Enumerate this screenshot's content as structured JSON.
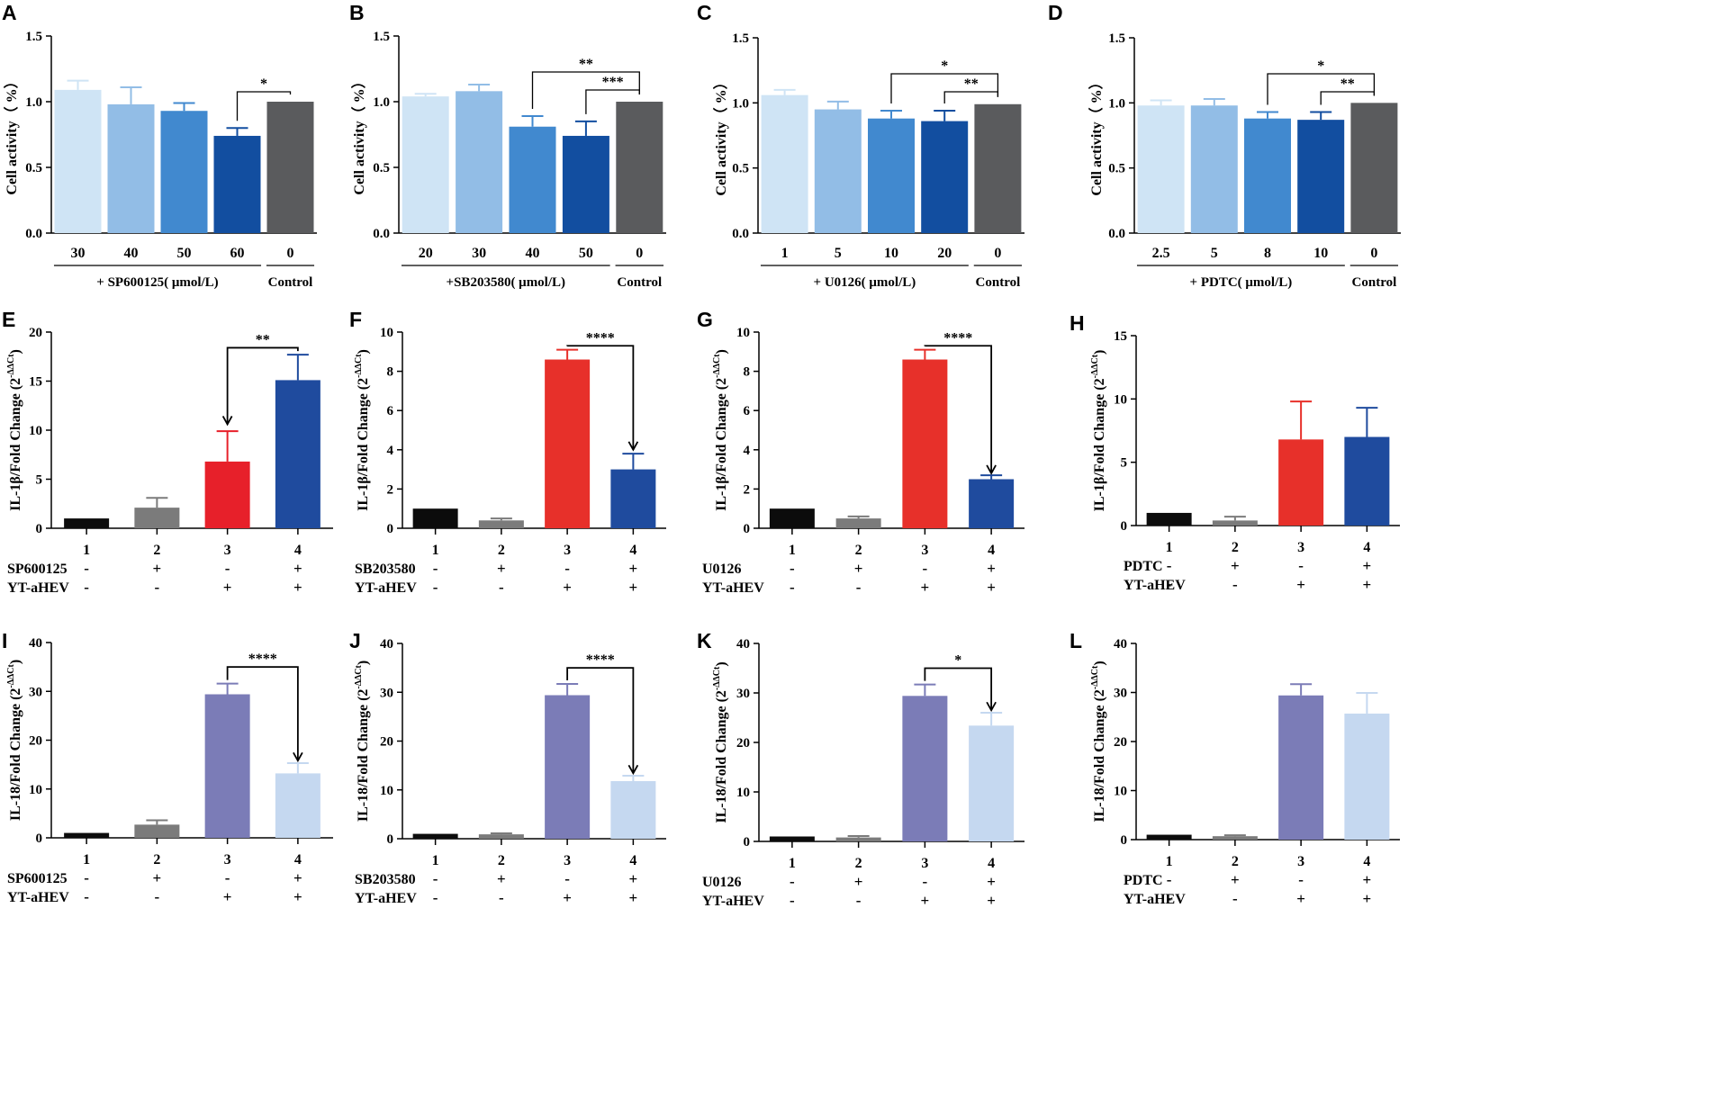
{
  "chart_data": [
    {
      "panel": "A",
      "type": "bar",
      "ylabel": "Cell activity（ %）",
      "ylim": [
        0,
        1.5
      ],
      "yticks": [
        "0.0",
        "0.5",
        "1.0",
        "1.5"
      ],
      "ytick_values": [
        0,
        0.5,
        1.0,
        1.5
      ],
      "categories": [
        "30",
        "40",
        "50",
        "60",
        "0"
      ],
      "values": [
        1.09,
        0.98,
        0.93,
        0.74,
        1.0
      ],
      "errors": [
        0.07,
        0.13,
        0.06,
        0.06,
        0.0
      ],
      "colors": [
        "#cfe4f5",
        "#92bde6",
        "#4189cf",
        "#124ea0",
        "#5a5b5d"
      ],
      "groups": [
        {
          "label": "+ SP600125( μmol/L)",
          "from": 0,
          "to": 3
        },
        {
          "label": "Control",
          "from": 4,
          "to": 4
        }
      ],
      "sig": [
        {
          "from": 3,
          "to": 4,
          "label": "*",
          "level": 0
        }
      ]
    },
    {
      "panel": "B",
      "type": "bar",
      "ylabel": "Cell activity（ %）",
      "ylim": [
        0,
        1.5
      ],
      "yticks": [
        "0.0",
        "0.5",
        "1.0",
        "1.5"
      ],
      "ytick_values": [
        0,
        0.5,
        1.0,
        1.5
      ],
      "categories": [
        "20",
        "30",
        "40",
        "50",
        "0"
      ],
      "values": [
        1.04,
        1.08,
        0.81,
        0.74,
        1.0
      ],
      "errors": [
        0.02,
        0.05,
        0.08,
        0.11,
        0.0
      ],
      "colors": [
        "#cfe4f5",
        "#92bde6",
        "#4189cf",
        "#124ea0",
        "#5a5b5d"
      ],
      "groups": [
        {
          "label": "+SB203580( μmol/L)",
          "from": 0,
          "to": 3
        },
        {
          "label": "Control",
          "from": 4,
          "to": 4
        }
      ],
      "sig": [
        {
          "from": 2,
          "to": 4,
          "label": "**",
          "level": 1
        },
        {
          "from": 3,
          "to": 4,
          "label": "***",
          "level": 0
        }
      ]
    },
    {
      "panel": "C",
      "type": "bar",
      "ylabel": "Cell activity（ %）",
      "ylim": [
        0,
        1.5
      ],
      "yticks": [
        "0.0",
        "0.5",
        "1.0",
        "1.5"
      ],
      "ytick_values": [
        0,
        0.5,
        1.0,
        1.5
      ],
      "categories": [
        "1",
        "5",
        "10",
        "20",
        "0"
      ],
      "values": [
        1.06,
        0.95,
        0.88,
        0.86,
        0.99
      ],
      "errors": [
        0.04,
        0.06,
        0.06,
        0.08,
        0.0
      ],
      "colors": [
        "#cfe4f5",
        "#92bde6",
        "#4189cf",
        "#124ea0",
        "#5a5b5d"
      ],
      "groups": [
        {
          "label": "+ U0126( μmol/L)",
          "from": 0,
          "to": 3
        },
        {
          "label": "Control",
          "from": 4,
          "to": 4
        }
      ],
      "sig": [
        {
          "from": 2,
          "to": 4,
          "label": "*",
          "level": 1
        },
        {
          "from": 3,
          "to": 4,
          "label": "**",
          "level": 0
        }
      ]
    },
    {
      "panel": "D",
      "type": "bar",
      "ylabel": "Cell activity（ %）",
      "ylim": [
        0,
        1.5
      ],
      "yticks": [
        "0.0",
        "0.5",
        "1.0",
        "1.5"
      ],
      "ytick_values": [
        0,
        0.5,
        1.0,
        1.5
      ],
      "categories": [
        "2.5",
        "5",
        "8",
        "10",
        "0"
      ],
      "values": [
        0.98,
        0.98,
        0.88,
        0.87,
        1.0
      ],
      "errors": [
        0.04,
        0.05,
        0.05,
        0.06,
        0.0
      ],
      "colors": [
        "#cfe4f5",
        "#92bde6",
        "#4189cf",
        "#124ea0",
        "#5a5b5d"
      ],
      "groups": [
        {
          "label": "+ PDTC( μmol/L)",
          "from": 0,
          "to": 3
        },
        {
          "label": "Control",
          "from": 4,
          "to": 4
        }
      ],
      "sig": [
        {
          "from": 2,
          "to": 4,
          "label": "*",
          "level": 1
        },
        {
          "from": 3,
          "to": 4,
          "label": "**",
          "level": 0
        }
      ]
    },
    {
      "panel": "E",
      "type": "bar",
      "ylabel": "IL-1β/Fold Change (2",
      "ylabel_sup": "-ΔΔCt",
      "ylabel_close": ")",
      "ylim": [
        0,
        20
      ],
      "yticks": [
        "0",
        "5",
        "10",
        "15",
        "20"
      ],
      "ytick_values": [
        0,
        5,
        10,
        15,
        20
      ],
      "categories": [
        "1",
        "2",
        "3",
        "4"
      ],
      "values": [
        1.0,
        2.1,
        6.8,
        15.1
      ],
      "errors": [
        0.0,
        1.0,
        3.1,
        2.6
      ],
      "colors": [
        "#0c0c0c",
        "#7b7b7b",
        "#e7202a",
        "#1f4b9e"
      ],
      "treatments": [
        {
          "label": "SP600125",
          "signs": [
            "-",
            "+",
            "-",
            "+"
          ]
        },
        {
          "label": "YT-aHEV",
          "signs": [
            "-",
            "-",
            "+",
            "+"
          ]
        }
      ],
      "sig": [
        {
          "from": 2,
          "to": 3,
          "label": "**",
          "y": 18.4,
          "from_drop": 10.6
        }
      ]
    },
    {
      "panel": "F",
      "type": "bar",
      "ylabel": "IL-1β/Fold Change (2",
      "ylabel_sup": "-ΔΔCt",
      "ylabel_close": ")",
      "ylim": [
        0,
        10
      ],
      "yticks": [
        "0",
        "2",
        "4",
        "6",
        "8",
        "10"
      ],
      "ytick_values": [
        0,
        2,
        4,
        6,
        8,
        10
      ],
      "categories": [
        "1",
        "2",
        "3",
        "4"
      ],
      "values": [
        1.0,
        0.4,
        8.6,
        3.0
      ],
      "errors": [
        0.0,
        0.1,
        0.5,
        0.8
      ],
      "colors": [
        "#0c0c0c",
        "#7b7b7b",
        "#e7302a",
        "#1f4b9e"
      ],
      "treatments": [
        {
          "label": "SB203580",
          "signs": [
            "-",
            "+",
            "-",
            "+"
          ]
        },
        {
          "label": "YT-aHEV",
          "signs": [
            "-",
            "-",
            "+",
            "+"
          ]
        }
      ],
      "sig": [
        {
          "from": 2,
          "to": 3,
          "label": "****",
          "y": 9.3,
          "to_drop": 4.0
        }
      ]
    },
    {
      "panel": "G",
      "type": "bar",
      "ylabel": "IL-1β/Fold Change (2",
      "ylabel_sup": "-ΔΔCt",
      "ylabel_close": ")",
      "ylim": [
        0,
        10
      ],
      "yticks": [
        "0",
        "2",
        "4",
        "6",
        "8",
        "10"
      ],
      "ytick_values": [
        0,
        2,
        4,
        6,
        8,
        10
      ],
      "categories": [
        "1",
        "2",
        "3",
        "4"
      ],
      "values": [
        1.0,
        0.5,
        8.6,
        2.5
      ],
      "errors": [
        0.0,
        0.1,
        0.5,
        0.2
      ],
      "colors": [
        "#0c0c0c",
        "#7b7b7b",
        "#e7302a",
        "#1f4b9e"
      ],
      "treatments": [
        {
          "label": "U0126",
          "signs": [
            "-",
            "+",
            "-",
            "+"
          ]
        },
        {
          "label": "YT-aHEV",
          "signs": [
            "-",
            "-",
            "+",
            "+"
          ]
        }
      ],
      "sig": [
        {
          "from": 2,
          "to": 3,
          "label": "****",
          "y": 9.3,
          "to_drop": 2.8
        }
      ]
    },
    {
      "panel": "H",
      "type": "bar",
      "ylabel": "IL-1β/Fold Change (2",
      "ylabel_sup": "-ΔΔCt",
      "ylabel_close": ")",
      "ylim": [
        0,
        15
      ],
      "yticks": [
        "0",
        "5",
        "10",
        "15"
      ],
      "ytick_values": [
        0,
        5,
        10,
        15
      ],
      "categories": [
        "1",
        "2",
        "3",
        "4"
      ],
      "values": [
        1.0,
        0.4,
        6.8,
        7.0
      ],
      "errors": [
        0.0,
        0.3,
        3.0,
        2.3
      ],
      "colors": [
        "#0c0c0c",
        "#7b7b7b",
        "#e7302a",
        "#1f4b9e"
      ],
      "treatments": [
        {
          "label": "PDTC",
          "signs": [
            "-",
            "+",
            "-",
            "+"
          ]
        },
        {
          "label": "YT-aHEV",
          "signs": [
            "-",
            "-",
            "+",
            "+"
          ]
        }
      ],
      "sig": []
    },
    {
      "panel": "I",
      "type": "bar",
      "ylabel": "IL-18/Fold Change (2",
      "ylabel_sup": "-ΔΔCt",
      "ylabel_close": ")",
      "ylim": [
        0,
        40
      ],
      "yticks": [
        "0",
        "10",
        "20",
        "30",
        "40"
      ],
      "ytick_values": [
        0,
        10,
        20,
        30,
        40
      ],
      "categories": [
        "1",
        "2",
        "3",
        "4"
      ],
      "values": [
        1.0,
        2.7,
        29.4,
        13.2
      ],
      "errors": [
        0.0,
        0.9,
        2.2,
        2.1
      ],
      "colors": [
        "#0c0c0c",
        "#7b7b7b",
        "#7b7cb7",
        "#c5d8f0"
      ],
      "treatments": [
        {
          "label": "SP600125",
          "signs": [
            "-",
            "+",
            "-",
            "+"
          ]
        },
        {
          "label": "YT-aHEV",
          "signs": [
            "-",
            "-",
            "+",
            "+"
          ]
        }
      ],
      "sig": [
        {
          "from": 2,
          "to": 3,
          "label": "****",
          "y": 35.0,
          "to_drop": 15.8
        }
      ]
    },
    {
      "panel": "J",
      "type": "bar",
      "ylabel": "IL-18/Fold Change (2",
      "ylabel_sup": "-ΔΔCt",
      "ylabel_close": ")",
      "ylim": [
        0,
        40
      ],
      "yticks": [
        "0",
        "10",
        "20",
        "30",
        "40"
      ],
      "ytick_values": [
        0,
        10,
        20,
        30,
        40
      ],
      "categories": [
        "1",
        "2",
        "3",
        "4"
      ],
      "values": [
        1.0,
        0.9,
        29.4,
        11.8
      ],
      "errors": [
        0.0,
        0.2,
        2.3,
        1.1
      ],
      "colors": [
        "#0c0c0c",
        "#7b7b7b",
        "#7b7cb7",
        "#c5d8f0"
      ],
      "treatments": [
        {
          "label": "SB203580",
          "signs": [
            "-",
            "+",
            "-",
            "+"
          ]
        },
        {
          "label": "YT-aHEV",
          "signs": [
            "-",
            "-",
            "+",
            "+"
          ]
        }
      ],
      "sig": [
        {
          "from": 2,
          "to": 3,
          "label": "****",
          "y": 35.0,
          "to_drop": 13.4
        }
      ]
    },
    {
      "panel": "K",
      "type": "bar",
      "ylabel": "IL-18/Fold Change (2",
      "ylabel_sup": "-ΔΔCt",
      "ylabel_close": ")",
      "ylim": [
        0,
        40
      ],
      "yticks": [
        "0",
        "10",
        "20",
        "30",
        "40"
      ],
      "ytick_values": [
        0,
        10,
        20,
        30,
        40
      ],
      "categories": [
        "1",
        "2",
        "3",
        "4"
      ],
      "values": [
        1.0,
        0.8,
        29.4,
        23.4
      ],
      "errors": [
        0.0,
        0.3,
        2.3,
        2.6
      ],
      "colors": [
        "#0c0c0c",
        "#7b7b7b",
        "#7b7cb7",
        "#c5d8f0"
      ],
      "treatments": [
        {
          "label": "U0126",
          "signs": [
            "-",
            "+",
            "-",
            "+"
          ]
        },
        {
          "label": "YT-aHEV",
          "signs": [
            "-",
            "-",
            "+",
            "+"
          ]
        }
      ],
      "sig": [
        {
          "from": 2,
          "to": 3,
          "label": "*",
          "y": 35.0,
          "to_drop": 26.5
        }
      ]
    },
    {
      "panel": "L",
      "type": "bar",
      "ylabel": "IL-18/Fold Change (2",
      "ylabel_sup": "-ΔΔCt",
      "ylabel_close": ")",
      "ylim": [
        0,
        40
      ],
      "yticks": [
        "0",
        "10",
        "20",
        "30",
        "40"
      ],
      "ytick_values": [
        0,
        10,
        20,
        30,
        40
      ],
      "categories": [
        "1",
        "2",
        "3",
        "4"
      ],
      "values": [
        1.0,
        0.7,
        29.4,
        25.7
      ],
      "errors": [
        0.0,
        0.2,
        2.3,
        4.2
      ],
      "colors": [
        "#0c0c0c",
        "#7b7b7b",
        "#7b7cb7",
        "#c5d8f0"
      ],
      "treatments": [
        {
          "label": "PDTC",
          "signs": [
            "-",
            "+",
            "-",
            "+"
          ]
        },
        {
          "label": "YT-aHEV",
          "signs": [
            "-",
            "-",
            "+",
            "+"
          ]
        }
      ],
      "sig": []
    }
  ]
}
